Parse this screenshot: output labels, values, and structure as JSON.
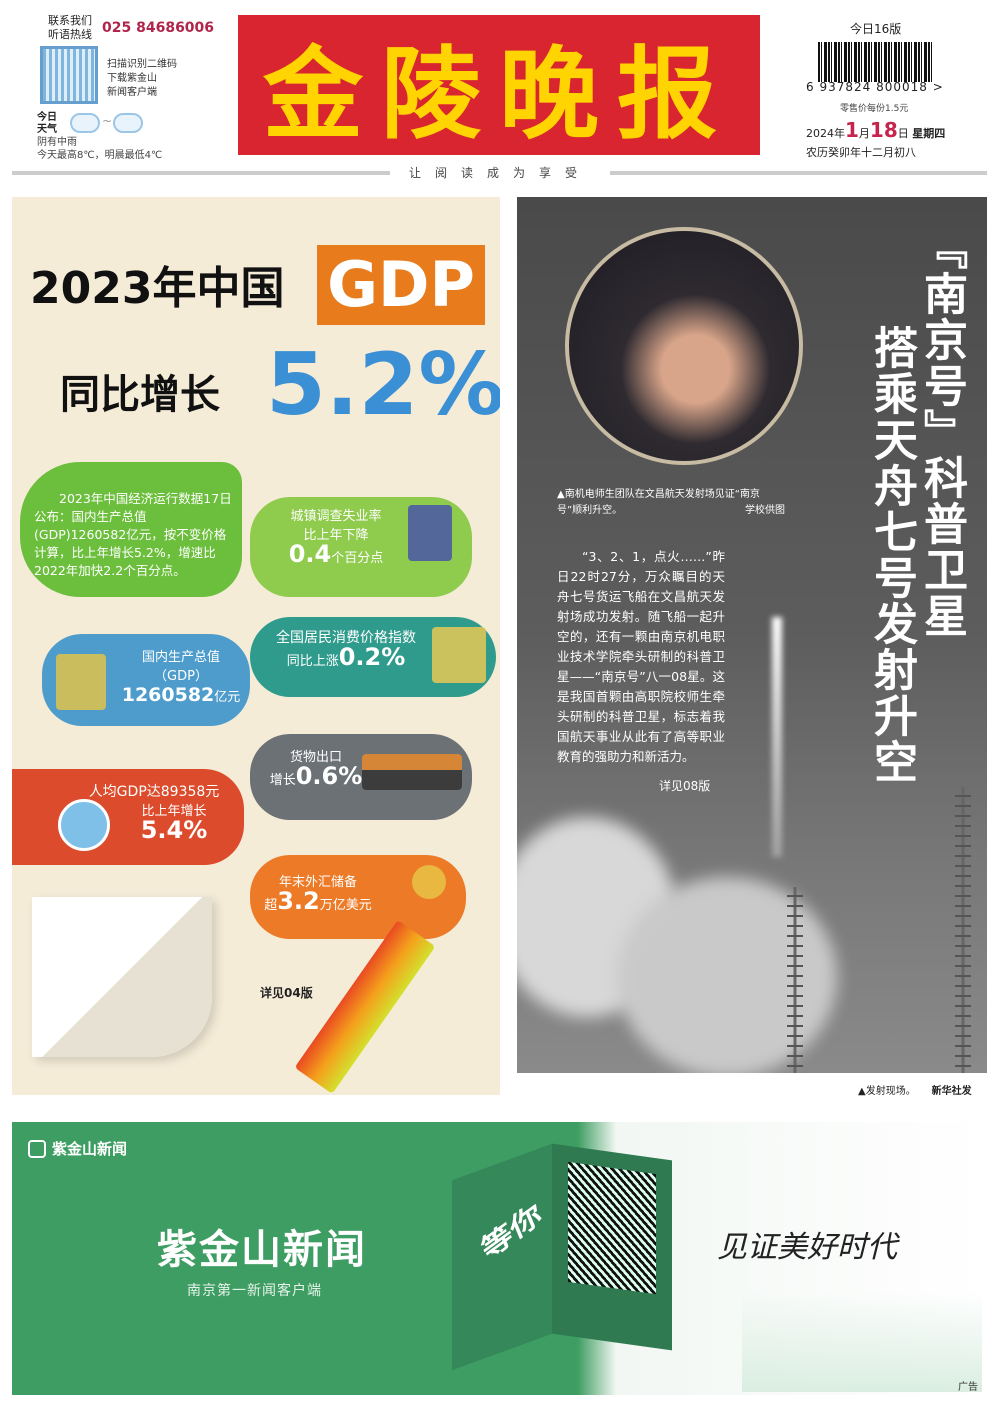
{
  "header": {
    "hotline_label": "联系我们 听语热线",
    "hotline": "025 84686006",
    "qr_text": [
      "扫描识别二维码",
      "下载紫金山",
      "新闻客户端"
    ],
    "weather_label": "今日 天气",
    "weather_tilde": "~",
    "weather_desc": "阴有中雨",
    "weather_temp": "今天最高8℃，明晨最低4℃",
    "masthead": "金陵晚报",
    "masthead_color": "#d9252f",
    "edition": "今日16版",
    "barcode_number": "6 937824 800018 >",
    "price": "零售价每份1.5元",
    "date_year": "2024年",
    "date_month": "1",
    "date_month_unit": "月",
    "date_day": "18",
    "date_day_unit": "日",
    "weekday": "星期四",
    "lunar": "农历癸卯年十二月初八",
    "slogan": "让阅读成为享受"
  },
  "gdp": {
    "title1": "2023年中国",
    "title_gdp": "GDP",
    "title2": "同比增长",
    "title_pct": "5.2%",
    "intro": "2023年中国经济运行数据17日公布：国内生产总值(GDP)1260582亿元，按不变价格计算，比上年增长5.2%，增速比2022年加快2.2个百分点。",
    "unemployment": {
      "line1": "城镇调查失业率",
      "line2": "比上年下降",
      "value": "0.4",
      "unit": "个百分点"
    },
    "gdp_total": {
      "line1": "国内生产总值",
      "line2": "（GDP）",
      "value": "1260582",
      "unit": "亿元"
    },
    "cpi": {
      "line1": "全国居民消费价格指数",
      "prefix": "同比上涨",
      "value": "0.2%"
    },
    "exports": {
      "line1": "货物出口",
      "prefix": "增长",
      "value": "0.6%"
    },
    "per_capita": {
      "line1": "人均GDP达89358元",
      "line2": "比上年增长",
      "value": "5.4%"
    },
    "fx": {
      "line1": "年末外汇储备",
      "prefix": "超",
      "value": "3.2",
      "unit": "万亿美元"
    },
    "see_more": "详见04版"
  },
  "satellite": {
    "headline_col1": "『南京号』科普卫星",
    "headline_col2": "搭乘天舟七号发射升空",
    "photo_caption": "▲南机电师生团队在文昌航天发射场见证“南京号”顺利升空。",
    "photo_credit": "学校供图",
    "body": "“3、2、1，点火……”昨日22时27分，万众瞩目的天舟七号货运飞船在文昌航天发射场成功发射。随飞船一起升空的，还有一颗由南京机电职业技术学院牵头研制的科普卫星——“南京号”八一08星。这是我国首颗由高职院校师生牵头研制的科普卫星，标志着我国航天事业从此有了高等职业教育的强助力和新活力。",
    "see_more": "详见08版",
    "launch_caption": "▲发射现场。",
    "launch_credit": "新华社发"
  },
  "ad": {
    "logo": "紫金山新闻",
    "title": "紫金山新闻",
    "subtitle": "南京第一新闻客户端",
    "cube_text": "等你",
    "slogan": "见证美好时代",
    "ad_label": "广告",
    "brand_color": "#3e9d62"
  }
}
